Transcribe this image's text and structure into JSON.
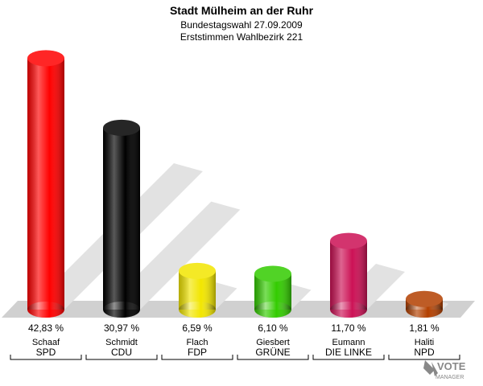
{
  "chart_data": {
    "type": "bar3d",
    "title": "Stadt Mülheim an der Ruhr",
    "subtitle": [
      "Bundestagswahl 27.09.2009",
      "Erststimmen Wahlbezirk 221"
    ],
    "categories": [
      "Schaaf",
      "Schmidt",
      "Flach",
      "Giesbert",
      "Eumann",
      "Haliti"
    ],
    "parties": [
      "SPD",
      "CDU",
      "FDP",
      "GRÜNE",
      "DIE LINKE",
      "NPD"
    ],
    "values": [
      42.83,
      30.97,
      6.59,
      6.1,
      11.7,
      1.81
    ],
    "value_labels": [
      "42,83 %",
      "30,97 %",
      "6,59 %",
      "6,10 %",
      "11,70 %",
      "1,81 %"
    ],
    "colors": [
      "#ff0000",
      "#000000",
      "#f2e600",
      "#33cc00",
      "#cc1155",
      "#b34000"
    ],
    "logo": [
      "VOTE",
      "MANAGER"
    ]
  }
}
